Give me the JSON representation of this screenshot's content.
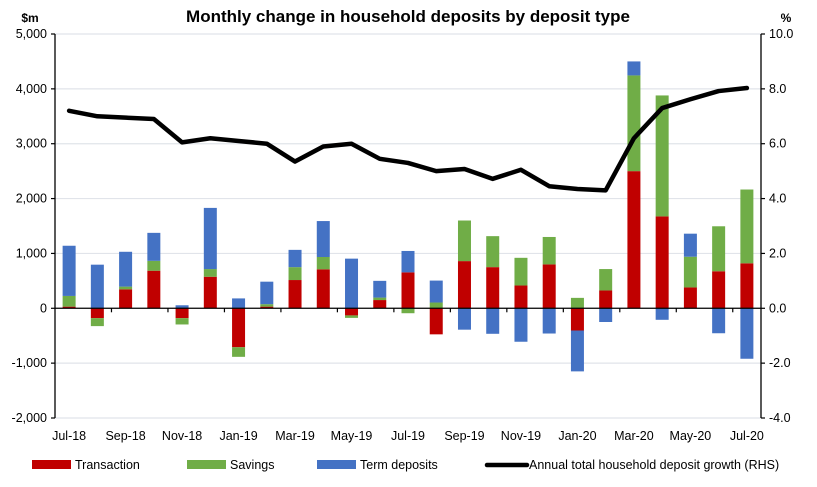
{
  "chart_data": {
    "type": "bar",
    "stacked": true,
    "title": "Monthly change in household deposits by deposit type",
    "ylabel": "$m",
    "y2label": "%",
    "ylim": [
      -2000,
      5000
    ],
    "y2lim": [
      -4.0,
      10.0
    ],
    "yticks": [
      "5,000",
      "4,000",
      "3,000",
      "2,000",
      "1,000",
      "0",
      "-1,000",
      "-2,000"
    ],
    "y2ticks": [
      "10.0",
      "8.0",
      "6.0",
      "4.0",
      "2.0",
      "0.0",
      "-2.0",
      "-4.0"
    ],
    "grid": true,
    "categories": [
      "Jul-18",
      "Aug-18",
      "Sep-18",
      "Oct-18",
      "Nov-18",
      "Dec-18",
      "Jan-19",
      "Feb-19",
      "Mar-19",
      "Apr-19",
      "May-19",
      "Jun-19",
      "Jul-19",
      "Aug-19",
      "Sep-19",
      "Oct-19",
      "Nov-19",
      "Dec-19",
      "Jan-20",
      "Feb-20",
      "Mar-20",
      "Apr-20",
      "May-20",
      "Jun-20",
      "Jul-20"
    ],
    "xtick_labels": [
      "Jul-18",
      "Sep-18",
      "Nov-18",
      "Jan-19",
      "Mar-19",
      "May-19",
      "Jul-19",
      "Sep-19",
      "Nov-19",
      "Jan-20",
      "Mar-20",
      "May-20",
      "Jul-20"
    ],
    "series": [
      {
        "name": "Transaction",
        "color": "#c00000",
        "type": "bar",
        "values": [
          30,
          -180,
          345,
          685,
          -180,
          575,
          -710,
          30,
          515,
          710,
          -130,
          150,
          655,
          -475,
          860,
          750,
          415,
          800,
          -405,
          325,
          2500,
          1675,
          380,
          675,
          820
        ]
      },
      {
        "name": "Savings",
        "color": "#70ad47",
        "type": "bar",
        "values": [
          195,
          -145,
          50,
          180,
          -115,
          140,
          -175,
          45,
          235,
          225,
          -45,
          45,
          -90,
          105,
          740,
          565,
          505,
          500,
          190,
          390,
          1745,
          2205,
          560,
          820,
          1345
        ]
      },
      {
        "name": "Term deposits",
        "color": "#4472c4",
        "type": "bar",
        "values": [
          915,
          795,
          635,
          510,
          55,
          1115,
          180,
          410,
          315,
          655,
          905,
          305,
          390,
          400,
          -390,
          -465,
          -610,
          -460,
          -745,
          -250,
          255,
          -210,
          420,
          -455,
          -920
        ]
      },
      {
        "name": "Annual total household deposit growth (RHS)",
        "color": "#000000",
        "type": "line",
        "axis": "right",
        "values": [
          7.2,
          7.0,
          6.95,
          6.9,
          6.05,
          6.2,
          6.1,
          6.0,
          5.35,
          5.9,
          6.0,
          5.45,
          5.3,
          5.0,
          5.08,
          4.72,
          5.05,
          4.45,
          4.35,
          4.3,
          6.2,
          7.3,
          7.62,
          7.92,
          8.03
        ]
      }
    ],
    "legend_position": "bottom"
  }
}
